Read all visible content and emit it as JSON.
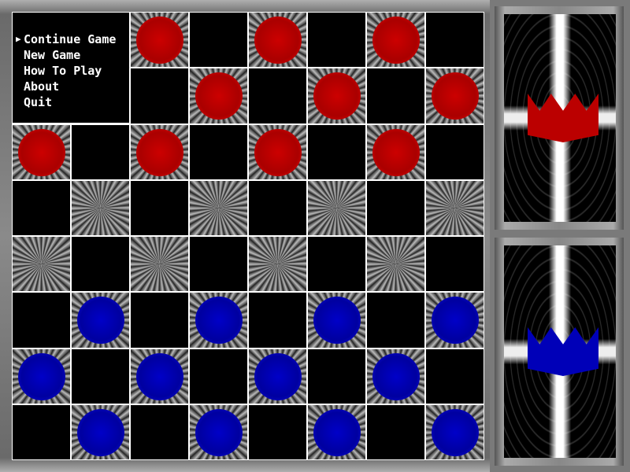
{
  "menu": {
    "items": [
      {
        "label": "Continue Game",
        "selected": true
      },
      {
        "label": "New Game",
        "selected": false
      },
      {
        "label": "How To Play",
        "selected": false
      },
      {
        "label": "About",
        "selected": false
      },
      {
        "label": "Quit",
        "selected": false
      }
    ],
    "selector_icon": "triangle-right-icon"
  },
  "board": {
    "size": 8,
    "rows": [
      [
        "",
        "",
        "R",
        "",
        "R",
        "",
        "R",
        ""
      ],
      [
        "",
        "",
        "",
        "R",
        "",
        "R",
        "",
        "R"
      ],
      [
        "R",
        "",
        "R",
        "",
        "R",
        "",
        "R",
        ""
      ],
      [
        "",
        "",
        "",
        "",
        "",
        "",
        "",
        ""
      ],
      [
        "",
        "",
        "",
        "",
        "",
        "",
        "",
        ""
      ],
      [
        "",
        "B",
        "",
        "B",
        "",
        "B",
        "",
        "B"
      ],
      [
        "B",
        "",
        "B",
        "",
        "B",
        "",
        "B",
        ""
      ],
      [
        "",
        "B",
        "",
        "B",
        "",
        "B",
        "",
        "B"
      ]
    ],
    "colors": {
      "red": "#cc0000",
      "blue": "#0000c0"
    }
  },
  "side_panels": [
    {
      "player": "red",
      "icon": "crown-icon"
    },
    {
      "player": "blue",
      "icon": "crown-icon"
    }
  ]
}
